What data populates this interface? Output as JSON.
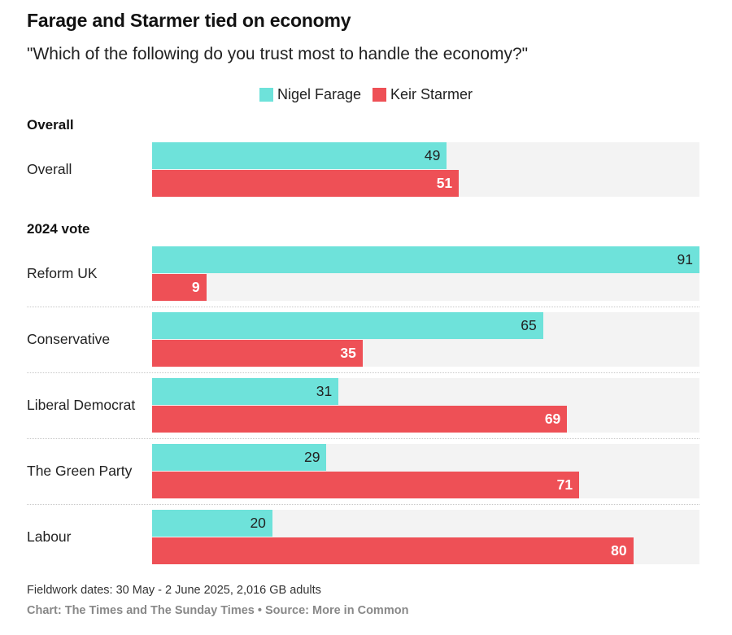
{
  "title": "Farage and Starmer tied on economy",
  "subtitle": "\"Which of the following do you trust most to handle the economy?\"",
  "footer": {
    "note": "Fieldwork dates: 30 May - 2 June 2025, 2,016 GB adults",
    "source": "Chart: The Times and The Sunday Times • Source: More in Common"
  },
  "chart_data": {
    "type": "bar",
    "orientation": "horizontal",
    "title": "Farage and Starmer tied on economy",
    "subtitle": "\"Which of the following do you trust most to handle the economy?\"",
    "xlim": [
      0,
      91
    ],
    "colors": {
      "farage": "#6ee2da",
      "starmer": "#ee5056"
    },
    "series": [
      {
        "name": "Nigel Farage",
        "key": "farage"
      },
      {
        "name": "Keir Starmer",
        "key": "starmer"
      }
    ],
    "legend": [
      "Nigel Farage",
      "Keir Starmer"
    ],
    "groups": [
      {
        "name": "Overall",
        "rows": [
          {
            "label": "Overall",
            "farage": 49,
            "starmer": 51
          }
        ]
      },
      {
        "name": "2024 vote",
        "rows": [
          {
            "label": "Reform UK",
            "farage": 91,
            "starmer": 9
          },
          {
            "label": "Conservative",
            "farage": 65,
            "starmer": 35
          },
          {
            "label": "Liberal Democrat",
            "farage": 31,
            "starmer": 69
          },
          {
            "label": "The Green Party",
            "farage": 29,
            "starmer": 71
          },
          {
            "label": "Labour",
            "farage": 20,
            "starmer": 80
          }
        ]
      }
    ]
  }
}
